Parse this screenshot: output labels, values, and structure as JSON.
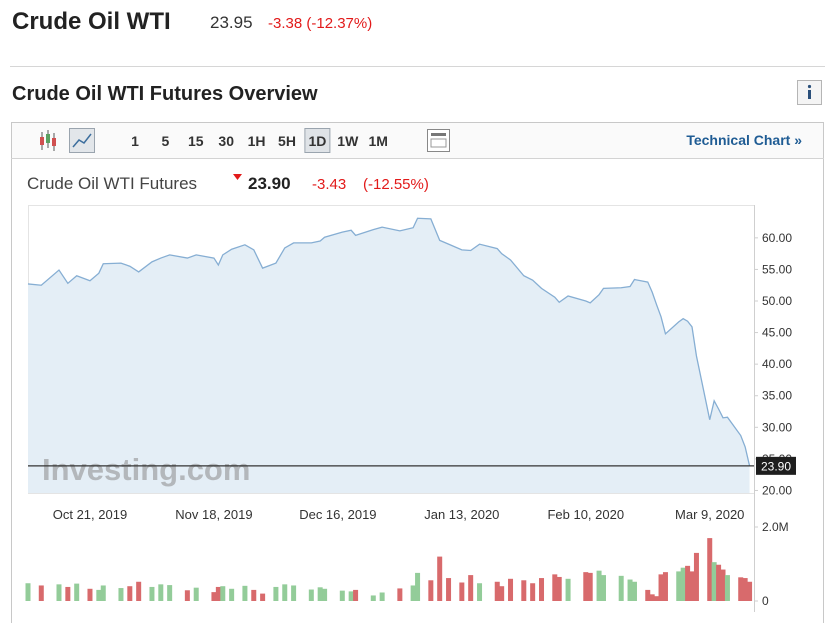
{
  "header": {
    "title": "Crude Oil WTI",
    "price": "23.95",
    "change": "-3.38 (-12.37%)"
  },
  "section_title": "Crude Oil WTI Futures Overview",
  "toolbar": {
    "intervals": [
      "1",
      "5",
      "15",
      "30",
      "1H",
      "5H",
      "1D",
      "1W",
      "1M"
    ],
    "selected": "1D",
    "link": "Technical Chart »"
  },
  "quote": {
    "name": "Crude Oil WTI Futures",
    "price": "23.90",
    "change": "-3.43",
    "change_pct": "(-12.55%)"
  },
  "chart_data": {
    "type": "area",
    "watermark": "Investing.com",
    "color": "#86aed3",
    "fill": "#e4eef6",
    "x": [
      "Oct 7, 2019",
      "Oct 10, 2019",
      "Oct 14, 2019",
      "Oct 16, 2019",
      "Oct 18, 2019",
      "Oct 21, 2019",
      "Oct 23, 2019",
      "Oct 24, 2019",
      "Oct 28, 2019",
      "Oct 30, 2019",
      "Nov 1, 2019",
      "Nov 4, 2019",
      "Nov 6, 2019",
      "Nov 8, 2019",
      "Nov 12, 2019",
      "Nov 14, 2019",
      "Nov 18, 2019",
      "Nov 19, 2019",
      "Nov 20, 2019",
      "Nov 22, 2019",
      "Nov 25, 2019",
      "Nov 27, 2019",
      "Nov 29, 2019",
      "Dec 2, 2019",
      "Dec 4, 2019",
      "Dec 6, 2019",
      "Dec 10, 2019",
      "Dec 12, 2019",
      "Dec 13, 2019",
      "Dec 17, 2019",
      "Dec 19, 2019",
      "Dec 20, 2019",
      "Dec 24, 2019",
      "Dec 26, 2019",
      "Dec 30, 2019",
      "Jan 2, 2020",
      "Jan 3, 2020",
      "Jan 6, 2020",
      "Jan 8, 2020",
      "Jan 10, 2020",
      "Jan 13, 2020",
      "Jan 15, 2020",
      "Jan 17, 2020",
      "Jan 21, 2020",
      "Jan 22, 2020",
      "Jan 24, 2020",
      "Jan 27, 2020",
      "Jan 29, 2020",
      "Jan 31, 2020",
      "Feb 3, 2020",
      "Feb 4, 2020",
      "Feb 6, 2020",
      "Feb 10, 2020",
      "Feb 11, 2020",
      "Feb 13, 2020",
      "Feb 14, 2020",
      "Feb 18, 2020",
      "Feb 20, 2020",
      "Feb 21, 2020",
      "Feb 24, 2020",
      "Feb 25, 2020",
      "Feb 26, 2020",
      "Feb 27, 2020",
      "Feb 28, 2020",
      "Mar 2, 2020",
      "Mar 3, 2020",
      "Mar 4, 2020",
      "Mar 5, 2020",
      "Mar 6, 2020",
      "Mar 9, 2020",
      "Mar 10, 2020",
      "Mar 11, 2020",
      "Mar 12, 2020",
      "Mar 13, 2020",
      "Mar 16, 2020",
      "Mar 17, 2020",
      "Mar 18, 2020"
    ],
    "values": [
      52.7,
      52.5,
      54.9,
      52.8,
      54.0,
      53.2,
      54.4,
      55.9,
      56.0,
      55.5,
      54.6,
      56.2,
      56.8,
      57.3,
      56.8,
      57.3,
      56.8,
      55.7,
      57.3,
      58.2,
      58.9,
      58.1,
      55.2,
      56.0,
      58.4,
      59.2,
      59.2,
      59.5,
      60.1,
      60.9,
      61.2,
      60.4,
      61.3,
      61.7,
      61.1,
      61.6,
      63.1,
      63.0,
      59.6,
      59.0,
      58.1,
      58.0,
      59.0,
      58.3,
      57.5,
      56.5,
      54.0,
      53.3,
      52.0,
      50.6,
      49.8,
      50.8,
      50.0,
      49.7,
      51.0,
      52.0,
      52.1,
      52.3,
      53.4,
      53.0,
      51.4,
      49.4,
      47.5,
      44.8,
      46.7,
      47.2,
      46.8,
      45.9,
      41.3,
      31.2,
      34.2,
      32.9,
      31.5,
      31.6,
      28.7,
      26.9,
      23.9
    ],
    "xlim": [
      "Oct 7, 2019",
      "Mar 19, 2020"
    ],
    "xticks": [
      "Oct 21, 2019",
      "Nov 18, 2019",
      "Dec 16, 2019",
      "Jan 13, 2020",
      "Feb 10, 2020",
      "Mar 9, 2020"
    ],
    "ylim": [
      19.6,
      65.2
    ],
    "yticks": [
      {
        "value": 20,
        "label": "20.00"
      },
      {
        "value": 25,
        "label": "25.00"
      },
      {
        "value": 30,
        "label": "30.00"
      },
      {
        "value": 35,
        "label": "35.00"
      },
      {
        "value": 40,
        "label": "40.00"
      },
      {
        "value": 45,
        "label": "45.00"
      },
      {
        "value": 50,
        "label": "50.00"
      },
      {
        "value": 55,
        "label": "55.00"
      },
      {
        "value": 60,
        "label": "60.00"
      }
    ],
    "last_price": {
      "value": 23.9,
      "label": "23.90"
    },
    "volume": {
      "values": [
        480000,
        420000,
        450000,
        380000,
        470000,
        330000,
        300000,
        420000,
        350000,
        400000,
        520000,
        380000,
        450000,
        430000,
        290000,
        360000,
        240000,
        380000,
        400000,
        330000,
        410000,
        300000,
        200000,
        380000,
        450000,
        420000,
        310000,
        370000,
        330000,
        280000,
        260000,
        300000,
        150000,
        230000,
        340000,
        420000,
        760000,
        560000,
        1200000,
        620000,
        500000,
        700000,
        480000,
        520000,
        400000,
        600000,
        560000,
        480000,
        620000,
        720000,
        650000,
        600000,
        780000,
        760000,
        820000,
        700000,
        680000,
        580000,
        520000,
        300000,
        180000,
        130000,
        720000,
        780000,
        800000,
        900000,
        950000,
        800000,
        1300000,
        1700000,
        1050000,
        980000,
        850000,
        700000,
        640000,
        620000,
        520000
      ],
      "ylim": [
        0,
        2200000
      ],
      "yticks": [
        0,
        {
          "value": 2000000,
          "label": "2.0M"
        }
      ],
      "up_color": "#93cc99",
      "down_color": "#d86a6c"
    }
  }
}
